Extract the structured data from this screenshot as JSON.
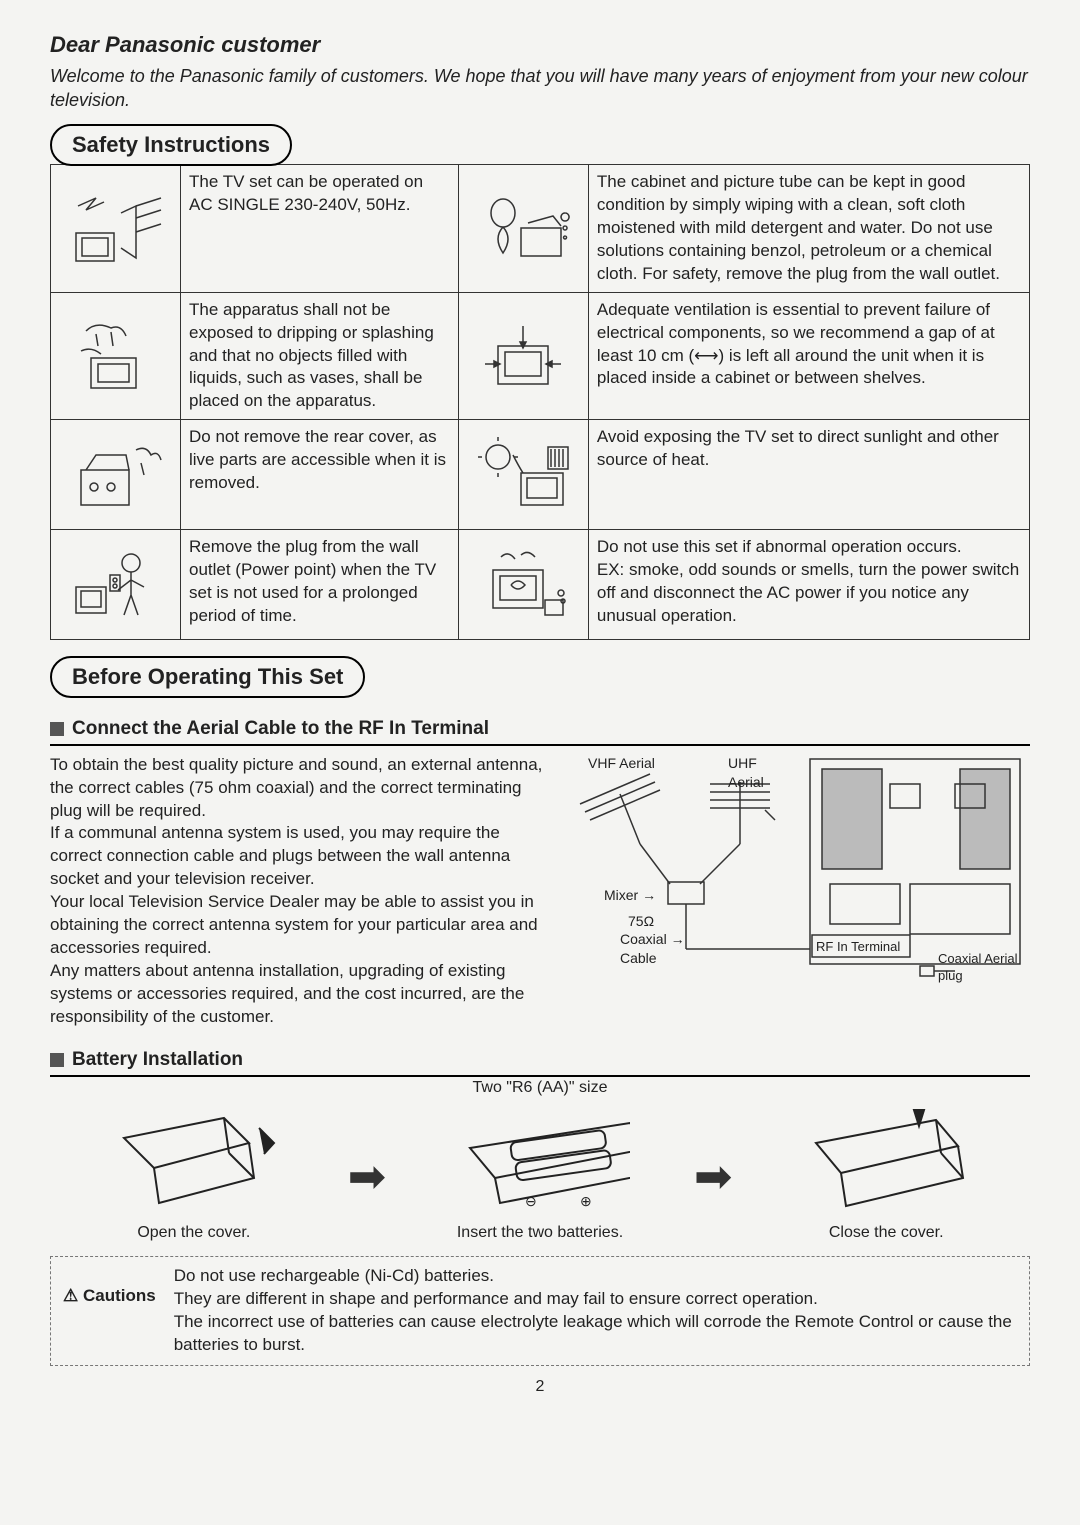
{
  "greeting": {
    "title": "Dear Panasonic customer",
    "body": "Welcome to the Panasonic family of customers. We hope that you will have many years of enjoyment from your new colour television."
  },
  "safety": {
    "heading": "Safety Instructions",
    "rows": [
      {
        "left": "The TV set can be operated on AC SINGLE 230-240V, 50Hz.",
        "right": "The cabinet and picture tube can be kept in good condition by simply wiping with a clean, soft cloth moistened with mild detergent and water. Do not use solutions containing benzol, petroleum or a chemical cloth. For safety, remove the plug from the wall outlet."
      },
      {
        "left": "The apparatus shall not be exposed to dripping or splashing and that no objects filled with liquids, such as vases, shall be placed on the apparatus.",
        "right": "Adequate ventilation is essential to prevent failure of electrical components, so we recommend a gap of at least 10 cm (⟷) is left all around the unit when it is placed inside a cabinet or between shelves."
      },
      {
        "left": "Do not remove the rear cover, as live parts are accessible when it is removed.",
        "right": "Avoid exposing the TV set to direct sunlight and other source of heat."
      },
      {
        "left": "Remove the plug from the wall outlet (Power point) when the TV set is not used for a prolonged period of time.",
        "right": "Do not use this set if abnormal operation occurs.\nEX: smoke, odd sounds or smells, turn the power switch off and disconnect the AC power if you notice any unusual operation."
      }
    ]
  },
  "before": {
    "heading": "Before Operating This Set",
    "aerial": {
      "title": "Connect the Aerial Cable to the RF In Terminal",
      "body": "To obtain the best quality picture and sound, an external antenna, the correct cables (75 ohm coaxial) and the correct terminating plug will be required.\nIf a communal antenna system is used, you may require the correct connection cable and plugs between the wall antenna socket and your television receiver.\nYour local Television Service Dealer may be able to assist you in obtaining the correct antenna system for your particular area and accessories required.\nAny matters about antenna installation, upgrading of existing systems or accessories required, and the cost incurred, are the responsibility of the customer.",
      "labels": {
        "vhf": "VHF Aerial",
        "uhf": "UHF Aerial",
        "mixer": "Mixer →",
        "ohm": "75Ω",
        "coax": "Coaxial → Cable",
        "rf": "RF In Terminal",
        "plug": "Coaxial Aerial plug"
      }
    },
    "battery": {
      "title": "Battery Installation",
      "size_label": "Two \"R6 (AA)\" size",
      "steps": [
        {
          "caption": "Open the cover."
        },
        {
          "caption": "Insert the two batteries."
        },
        {
          "caption": "Close the cover."
        }
      ]
    },
    "cautions": {
      "label": "⚠ Cautions",
      "body": "Do not use rechargeable (Ni-Cd) batteries.\nThey are different in shape and performance and may fail to ensure correct operation.\nThe incorrect use of batteries can cause electrolyte leakage which will corrode the Remote Control or cause the batteries to burst."
    }
  },
  "page_number": "2"
}
